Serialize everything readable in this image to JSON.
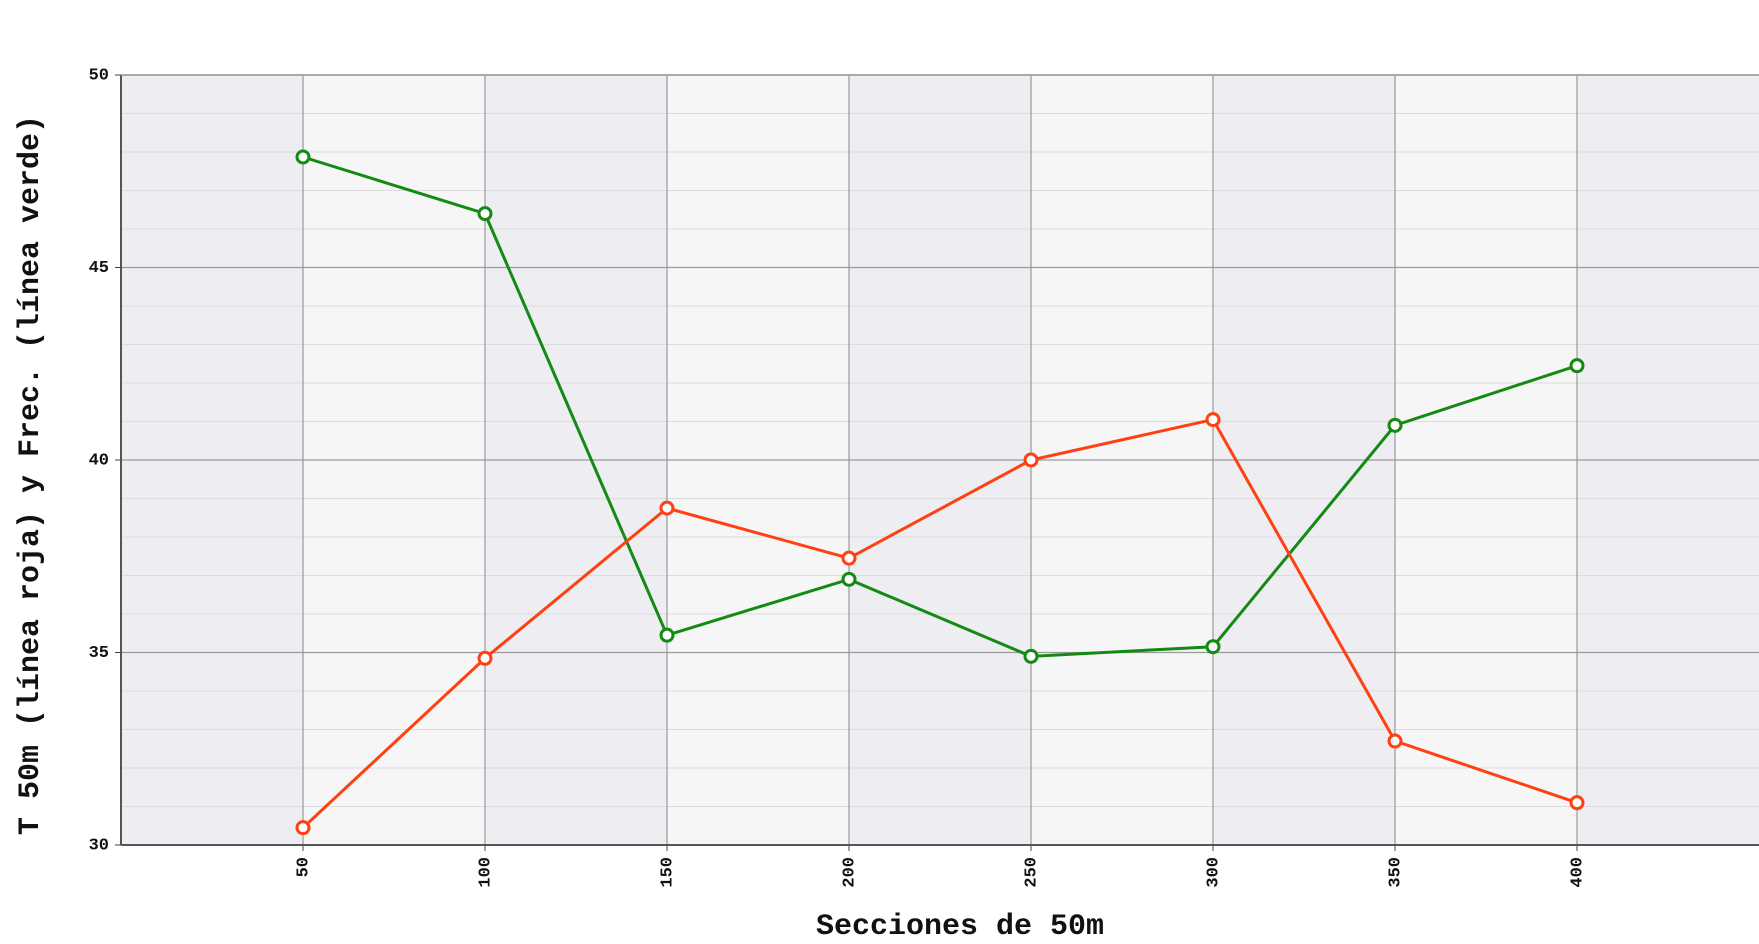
{
  "chart_data": {
    "type": "line",
    "x_label": "Secciones de 50m",
    "y_label": "T 50m (línea roja) y Frec. (línea verde)",
    "x": [
      50,
      100,
      150,
      200,
      250,
      300,
      350,
      400
    ],
    "series": [
      {
        "name": "Frec.",
        "color": "#138a13",
        "values": [
          47.87,
          46.4,
          35.45,
          36.9,
          34.9,
          35.15,
          40.9,
          42.45
        ]
      },
      {
        "name": "T 50m",
        "color": "#ff4010",
        "values": [
          30.45,
          34.85,
          38.75,
          37.45,
          40.0,
          41.05,
          32.7,
          31.1
        ]
      }
    ],
    "xlim": [
      0,
      450
    ],
    "xticks": [
      50,
      100,
      150,
      200,
      250,
      300,
      350,
      400
    ],
    "ylim": [
      30,
      50
    ],
    "yticks": [
      30,
      35,
      40,
      45,
      50
    ],
    "grid": true
  }
}
